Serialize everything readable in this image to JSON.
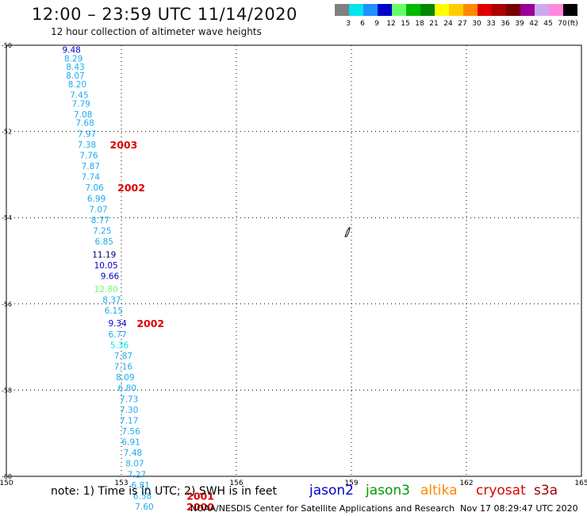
{
  "header": {
    "title": "12:00 – 23:59 UTC 11/14/2020",
    "subtitle": "12 hour collection of altimeter wave heights"
  },
  "legend": {
    "unit": "(ft)",
    "items": [
      {
        "label": "3",
        "color": "#808080"
      },
      {
        "label": "6",
        "color": "#00e5ee"
      },
      {
        "label": "9",
        "color": "#1e90ff"
      },
      {
        "label": "12",
        "color": "#0000cd"
      },
      {
        "label": "15",
        "color": "#66ff66"
      },
      {
        "label": "18",
        "color": "#00bb00"
      },
      {
        "label": "21",
        "color": "#008800"
      },
      {
        "label": "24",
        "color": "#ffff00"
      },
      {
        "label": "27",
        "color": "#ffcc00"
      },
      {
        "label": "30",
        "color": "#ff8800"
      },
      {
        "label": "33",
        "color": "#dd0000"
      },
      {
        "label": "36",
        "color": "#aa0000"
      },
      {
        "label": "39",
        "color": "#770000"
      },
      {
        "label": "42",
        "color": "#990099"
      },
      {
        "label": "45",
        "color": "#ccaaee"
      },
      {
        "label": "70",
        "color": "#ff88dd"
      },
      {
        "label": "",
        "color": "#000000"
      }
    ]
  },
  "map": {
    "lat_ticks": [
      "-50",
      "-52",
      "-54",
      "-56",
      "-58",
      "-60"
    ],
    "lon_ticks": [
      "150",
      "153",
      "156",
      "159",
      "162",
      "165"
    ],
    "lat_range": [
      -60,
      -50
    ],
    "lon_range": [
      150,
      165
    ],
    "grid": true
  },
  "wave_heights": [
    {
      "lat": -50.1,
      "lon": 151.7,
      "label": "9.48",
      "color": "#0000cd"
    },
    {
      "lat": -50.3,
      "lon": 151.75,
      "label": "8.29",
      "color": "#1eaaee"
    },
    {
      "lat": -50.5,
      "lon": 151.8,
      "label": "8.43",
      "color": "#1eaaee"
    },
    {
      "lat": -50.7,
      "lon": 151.8,
      "label": "8.07",
      "color": "#1eaaee"
    },
    {
      "lat": -50.9,
      "lon": 151.85,
      "label": "8.20",
      "color": "#1eaaee"
    },
    {
      "lat": -51.15,
      "lon": 151.9,
      "label": "7.45",
      "color": "#1eaaee"
    },
    {
      "lat": -51.35,
      "lon": 151.95,
      "label": "7.79",
      "color": "#1eaaee"
    },
    {
      "lat": -51.6,
      "lon": 152.0,
      "label": "7.08",
      "color": "#1eaaee"
    },
    {
      "lat": -51.8,
      "lon": 152.05,
      "label": "7.68",
      "color": "#1eaaee"
    },
    {
      "lat": -52.05,
      "lon": 152.1,
      "label": "7.97",
      "color": "#1eaaee"
    },
    {
      "lat": -52.3,
      "lon": 152.1,
      "label": "7.38",
      "color": "#1eaaee"
    },
    {
      "lat": -52.55,
      "lon": 152.15,
      "label": "7.76",
      "color": "#1eaaee"
    },
    {
      "lat": -52.8,
      "lon": 152.2,
      "label": "7.87",
      "color": "#1eaaee"
    },
    {
      "lat": -53.05,
      "lon": 152.2,
      "label": "7.74",
      "color": "#1eaaee"
    },
    {
      "lat": -53.3,
      "lon": 152.3,
      "label": "7.06",
      "color": "#1eaaee"
    },
    {
      "lat": -53.55,
      "lon": 152.35,
      "label": "6.99",
      "color": "#1eaaee"
    },
    {
      "lat": -53.8,
      "lon": 152.4,
      "label": "7.07",
      "color": "#1eaaee"
    },
    {
      "lat": -54.05,
      "lon": 152.45,
      "label": "8.77",
      "color": "#1eaaee"
    },
    {
      "lat": -54.3,
      "lon": 152.5,
      "label": "7.25",
      "color": "#1eaaee"
    },
    {
      "lat": -54.55,
      "lon": 152.55,
      "label": "6.85",
      "color": "#1eaaee"
    },
    {
      "lat": -54.85,
      "lon": 152.55,
      "label": "11.19",
      "color": "#000080"
    },
    {
      "lat": -55.1,
      "lon": 152.6,
      "label": "10.05",
      "color": "#0000cd"
    },
    {
      "lat": -55.35,
      "lon": 152.7,
      "label": "9.66",
      "color": "#0000cd"
    },
    {
      "lat": -55.65,
      "lon": 152.6,
      "label": "12.80",
      "color": "#66ff66"
    },
    {
      "lat": -55.9,
      "lon": 152.75,
      "label": "8.37",
      "color": "#1eaaee"
    },
    {
      "lat": -56.15,
      "lon": 152.8,
      "label": "6.15",
      "color": "#1eaaee"
    },
    {
      "lat": -56.45,
      "lon": 152.9,
      "label": "9.34",
      "color": "#0000cd"
    },
    {
      "lat": -56.7,
      "lon": 152.9,
      "label": "6.77",
      "color": "#1eaaee"
    },
    {
      "lat": -56.95,
      "lon": 152.95,
      "label": "5.36",
      "color": "#00e5ee"
    },
    {
      "lat": -57.2,
      "lon": 153.05,
      "label": "7.87",
      "color": "#1eaaee"
    },
    {
      "lat": -57.45,
      "lon": 153.05,
      "label": "7.16",
      "color": "#1eaaee"
    },
    {
      "lat": -57.7,
      "lon": 153.1,
      "label": "8.09",
      "color": "#1eaaee"
    },
    {
      "lat": -57.95,
      "lon": 153.15,
      "label": "6.80",
      "color": "#1eaaee"
    },
    {
      "lat": -58.2,
      "lon": 153.2,
      "label": "7.73",
      "color": "#1eaaee"
    },
    {
      "lat": -58.45,
      "lon": 153.2,
      "label": "7.30",
      "color": "#1eaaee"
    },
    {
      "lat": -58.7,
      "lon": 153.2,
      "label": "7.17",
      "color": "#1eaaee"
    },
    {
      "lat": -58.95,
      "lon": 153.25,
      "label": "7.56",
      "color": "#1eaaee"
    },
    {
      "lat": -59.2,
      "lon": 153.25,
      "label": "6.91",
      "color": "#1eaaee"
    },
    {
      "lat": -59.45,
      "lon": 153.3,
      "label": "7.48",
      "color": "#1eaaee"
    },
    {
      "lat": -59.7,
      "lon": 153.35,
      "label": "8.07",
      "color": "#1eaaee"
    },
    {
      "lat": -59.95,
      "lon": 153.4,
      "label": "7.27",
      "color": "#1eaaee"
    },
    {
      "lat": -60.2,
      "lon": 153.5,
      "label": "6.81",
      "color": "#1eaaee"
    },
    {
      "lat": -60.45,
      "lon": 153.55,
      "label": "6.58",
      "color": "#1eaaee"
    },
    {
      "lat": -60.7,
      "lon": 153.6,
      "label": "7.60",
      "color": "#1eaaee"
    }
  ],
  "time_labels": [
    {
      "lat": -52.3,
      "lon": 152.7,
      "label": "2003",
      "color": "#dd0000"
    },
    {
      "lat": -53.3,
      "lon": 152.9,
      "label": "2002",
      "color": "#dd0000"
    },
    {
      "lat": -56.45,
      "lon": 153.4,
      "label": "2002",
      "color": "#dd0000"
    },
    {
      "lat": -60.45,
      "lon": 154.7,
      "label": "2001",
      "color": "#dd0000"
    },
    {
      "lat": -60.7,
      "lon": 154.7,
      "label": "2000",
      "color": "#dd0000"
    }
  ],
  "footer": {
    "note": "note: 1) Time is in UTC; 2) SWH is in feet",
    "satellites": [
      {
        "label": "jason2",
        "color": "#0000cc"
      },
      {
        "label": "jason3",
        "color": "#009900"
      },
      {
        "label": "altika",
        "color": "#ff8800"
      },
      {
        "label": "cryosat",
        "color": "#dd0000"
      },
      {
        "label": "s3a",
        "color": "#990000"
      }
    ],
    "credit": "NOAA/NESDIS Center for Satellite Applications and Research",
    "timestamp": "Nov 17 08:29:47 UTC 2020"
  }
}
